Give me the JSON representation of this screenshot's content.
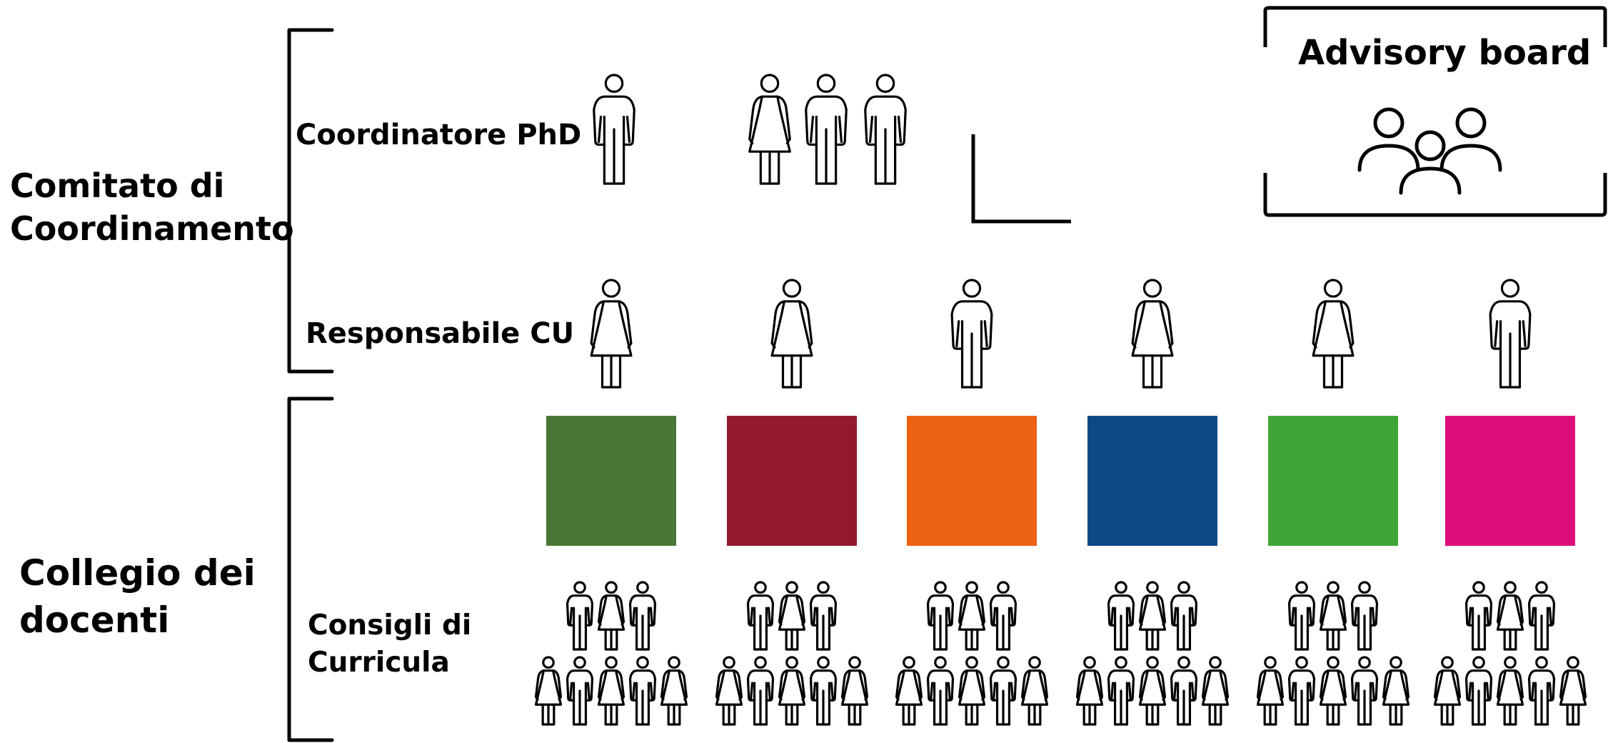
{
  "groups": {
    "comitato_line1": "Comitato di",
    "comitato_line2": "Coordinamento",
    "collegio_line1": "Collegio dei",
    "collegio_line2": "docenti"
  },
  "rows": {
    "coordinatore": "Coordinatore PhD",
    "responsabile": "Responsabile CU",
    "consigli_line1": "Consigli di",
    "consigli_line2": "Curricula"
  },
  "advisory": {
    "title": "Advisory board",
    "icon": "group-icon"
  },
  "coordinator_row": [
    "man",
    "woman",
    "man",
    "man"
  ],
  "responsabili": [
    "woman",
    "woman",
    "man",
    "woman",
    "woman",
    "man"
  ],
  "curricula": [
    {
      "color": "#4a7736",
      "council_top": [
        "man",
        "woman",
        "man"
      ],
      "council_bottom": [
        "woman",
        "man",
        "woman",
        "man",
        "woman"
      ]
    },
    {
      "color": "#921930",
      "council_top": [
        "man",
        "woman",
        "man"
      ],
      "council_bottom": [
        "woman",
        "man",
        "woman",
        "man",
        "woman"
      ]
    },
    {
      "color": "#ec6212",
      "council_top": [
        "man",
        "woman",
        "man"
      ],
      "council_bottom": [
        "woman",
        "man",
        "woman",
        "man",
        "woman"
      ]
    },
    {
      "color": "#0c4a87",
      "council_top": [
        "man",
        "woman",
        "man"
      ],
      "council_bottom": [
        "woman",
        "man",
        "woman",
        "man",
        "woman"
      ]
    },
    {
      "color": "#3fa536",
      "council_top": [
        "man",
        "woman",
        "man"
      ],
      "council_bottom": [
        "woman",
        "man",
        "woman",
        "man",
        "woman"
      ]
    },
    {
      "color": "#dc0f7a",
      "council_top": [
        "man",
        "woman",
        "man"
      ],
      "council_bottom": [
        "woman",
        "man",
        "woman",
        "man",
        "woman"
      ]
    }
  ]
}
